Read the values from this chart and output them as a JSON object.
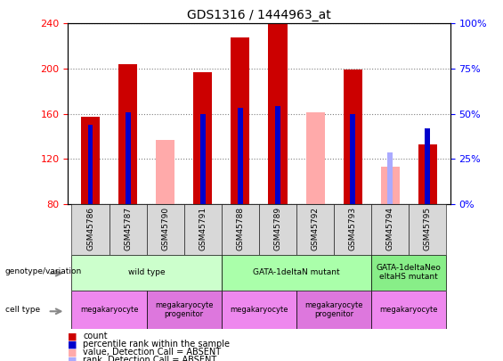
{
  "title": "GDS1316 / 1444963_at",
  "samples": [
    "GSM45786",
    "GSM45787",
    "GSM45790",
    "GSM45791",
    "GSM45788",
    "GSM45789",
    "GSM45792",
    "GSM45793",
    "GSM45794",
    "GSM45795"
  ],
  "ylim_left": [
    80,
    240
  ],
  "ylim_right": [
    0,
    100
  ],
  "yticks_left": [
    80,
    120,
    160,
    200,
    240
  ],
  "yticks_right": [
    0,
    25,
    50,
    75,
    100
  ],
  "yticklabels_right": [
    "0%",
    "25%",
    "50%",
    "75%",
    "100%"
  ],
  "count_values": [
    157,
    204,
    null,
    197,
    228,
    240,
    null,
    199,
    null,
    133
  ],
  "count_absent_values": [
    null,
    null,
    137,
    null,
    null,
    null,
    161,
    null,
    113,
    null
  ],
  "percentile_values": [
    150,
    161,
    null,
    160,
    165,
    167,
    null,
    160,
    null,
    147
  ],
  "percentile_absent_values": [
    null,
    null,
    null,
    null,
    null,
    null,
    null,
    null,
    126,
    null
  ],
  "count_color": "#cc0000",
  "count_absent_color": "#ffaaaa",
  "percentile_color": "#0000cc",
  "percentile_absent_color": "#aaaaff",
  "bar_width": 0.5,
  "geno_groups": [
    {
      "label": "wild type",
      "start": 0,
      "end": 3,
      "color": "#ccffcc"
    },
    {
      "label": "GATA-1deltaN mutant",
      "start": 4,
      "end": 7,
      "color": "#aaffaa"
    },
    {
      "label": "GATA-1deltaNeo\neltaHS mutant",
      "start": 8,
      "end": 9,
      "color": "#88ee88"
    }
  ],
  "cell_groups": [
    {
      "label": "megakaryocyte",
      "start": 0,
      "end": 1,
      "color": "#ee88ee"
    },
    {
      "label": "megakaryocyte\nprogenitor",
      "start": 2,
      "end": 3,
      "color": "#dd77dd"
    },
    {
      "label": "megakaryocyte",
      "start": 4,
      "end": 5,
      "color": "#ee88ee"
    },
    {
      "label": "megakaryocyte\nprogenitor",
      "start": 6,
      "end": 7,
      "color": "#dd77dd"
    },
    {
      "label": "megakaryocyte",
      "start": 8,
      "end": 9,
      "color": "#ee88ee"
    }
  ],
  "legend_items": [
    {
      "label": "count",
      "color": "#cc0000"
    },
    {
      "label": "percentile rank within the sample",
      "color": "#0000cc"
    },
    {
      "label": "value, Detection Call = ABSENT",
      "color": "#ffaaaa"
    },
    {
      "label": "rank, Detection Call = ABSENT",
      "color": "#aaaaff"
    }
  ],
  "row_labels": [
    "genotype/variation",
    "cell type"
  ]
}
